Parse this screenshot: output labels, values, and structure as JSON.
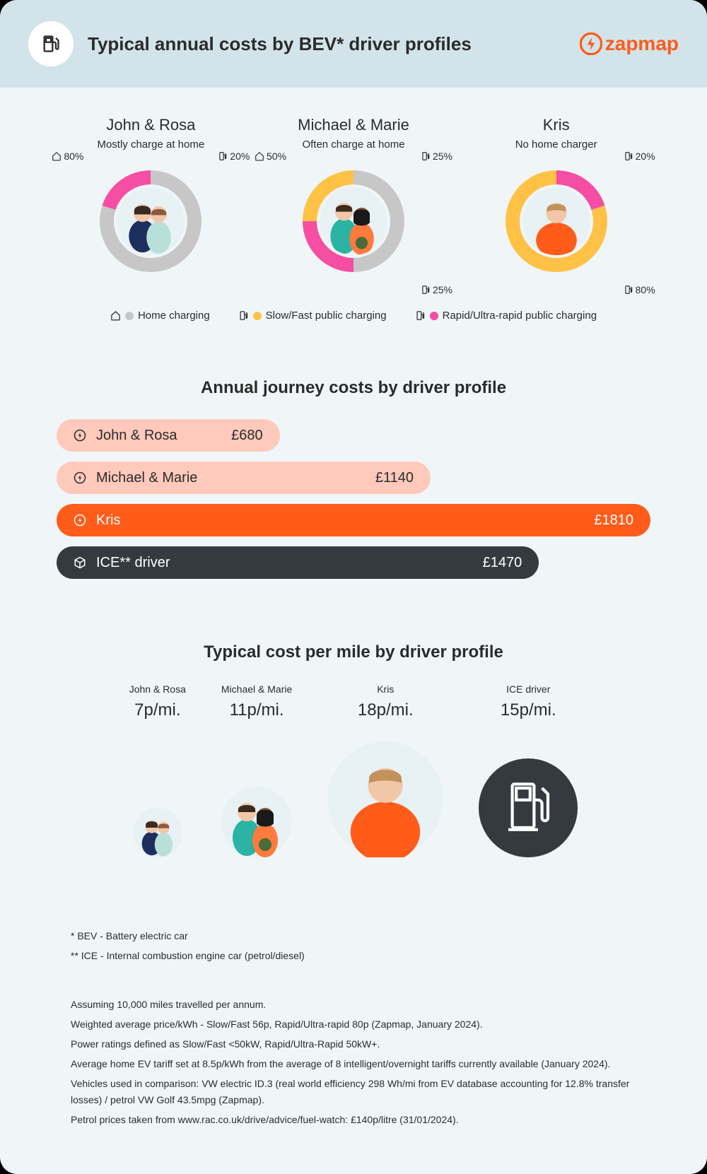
{
  "header": {
    "title": "Typical annual costs by BEV* driver profiles",
    "logo_text": "zapmap",
    "logo_color": "#ff5c1a"
  },
  "colors": {
    "home": "#c7c7c7",
    "slow": "#ffc247",
    "rapid": "#f54ea2",
    "bg": "#f0f6f8",
    "header_bg": "#d2e4ea",
    "text": "#2b2b2b"
  },
  "profiles": [
    {
      "name": "John & Rosa",
      "sub": "Mostly charge at home",
      "segments": [
        {
          "type": "home",
          "pct": 80,
          "color": "#c7c7c7"
        },
        {
          "type": "rapid",
          "pct": 20,
          "color": "#f54ea2"
        }
      ],
      "labels": [
        {
          "icon": "home",
          "text": "80%",
          "pos": "tl"
        },
        {
          "icon": "charger",
          "text": "20%",
          "pos": "tr"
        }
      ],
      "avatar": "couple1"
    },
    {
      "name": "Michael & Marie",
      "sub": "Often charge at home",
      "segments": [
        {
          "type": "home",
          "pct": 50,
          "color": "#c7c7c7"
        },
        {
          "type": "rapid",
          "pct": 25,
          "color": "#f54ea2"
        },
        {
          "type": "slow",
          "pct": 25,
          "color": "#ffc247"
        }
      ],
      "labels": [
        {
          "icon": "home",
          "text": "50%",
          "pos": "tl"
        },
        {
          "icon": "charger",
          "text": "25%",
          "pos": "tr"
        },
        {
          "icon": "charger",
          "text": "25%",
          "pos": "br"
        }
      ],
      "avatar": "couple2"
    },
    {
      "name": "Kris",
      "sub": "No home charger",
      "segments": [
        {
          "type": "rapid",
          "pct": 20,
          "color": "#f54ea2"
        },
        {
          "type": "slow",
          "pct": 80,
          "color": "#ffc247"
        }
      ],
      "labels": [
        {
          "icon": "charger",
          "text": "20%",
          "pos": "tr"
        },
        {
          "icon": "charger",
          "text": "80%",
          "pos": "br"
        }
      ],
      "avatar": "single"
    }
  ],
  "legend": [
    {
      "icon": "home",
      "dot": "#c7c7c7",
      "label": "Home charging"
    },
    {
      "icon": "charger",
      "dot": "#ffc247",
      "label": "Slow/Fast public charging"
    },
    {
      "icon": "charger",
      "dot": "#f54ea2",
      "label": "Rapid/Ultra-rapid public charging"
    }
  ],
  "annual": {
    "title": "Annual journey costs by driver profile",
    "max": 1810,
    "bars": [
      {
        "name": "John & Rosa",
        "value": "£680",
        "num": 680,
        "bg": "#ffc9bc",
        "fg": "#2b2b2b",
        "icon": "bolt",
        "icon_color": "#2b2b2b"
      },
      {
        "name": "Michael & Marie",
        "value": "£1140",
        "num": 1140,
        "bg": "#ffc9bc",
        "fg": "#2b2b2b",
        "icon": "bolt",
        "icon_color": "#2b2b2b"
      },
      {
        "name": "Kris",
        "value": "£1810",
        "num": 1810,
        "bg": "#ff5c1a",
        "fg": "#ffffff",
        "icon": "bolt",
        "icon_color": "#ffffff"
      },
      {
        "name": "ICE** driver",
        "value": "£1470",
        "num": 1470,
        "bg": "#353a40",
        "fg": "#ffffff",
        "icon": "cube",
        "icon_color": "#ffffff"
      }
    ]
  },
  "per_mile": {
    "title": "Typical cost per mile by driver profile",
    "items": [
      {
        "name": "John & Rosa",
        "value": "7p/mi.",
        "size": 70,
        "avatar": "couple1"
      },
      {
        "name": "Michael & Marie",
        "value": "11p/mi.",
        "size": 100,
        "avatar": "couple2"
      },
      {
        "name": "Kris",
        "value": "18p/mi.",
        "size": 164,
        "avatar": "single"
      },
      {
        "name": "ICE driver",
        "value": "15p/mi.",
        "size": 140,
        "avatar": "ice"
      }
    ]
  },
  "footnotes": [
    "* BEV - Battery electric car",
    "** ICE - Internal combustion engine car (petrol/diesel)",
    "",
    "Assuming 10,000 miles travelled per annum.",
    "Weighted average price/kWh - Slow/Fast 56p, Rapid/Ultra-rapid 80p (Zapmap, January 2024).",
    "Power ratings defined as Slow/Fast <50kW, Rapid/Ultra-Rapid 50kW+.",
    "Average home EV tariff set at 8.5p/kWh from the average of 8 intelligent/overnight tariffs currently available (January 2024).",
    "Vehicles used in comparison: VW electric ID.3 (real world efficiency 298 Wh/mi from EV database accounting for 12.8% transfer losses) / petrol VW Golf 43.5mpg (Zapmap).",
    "Petrol prices taken from www.rac.co.uk/drive/advice/fuel-watch: £140p/litre (31/01/2024)."
  ]
}
